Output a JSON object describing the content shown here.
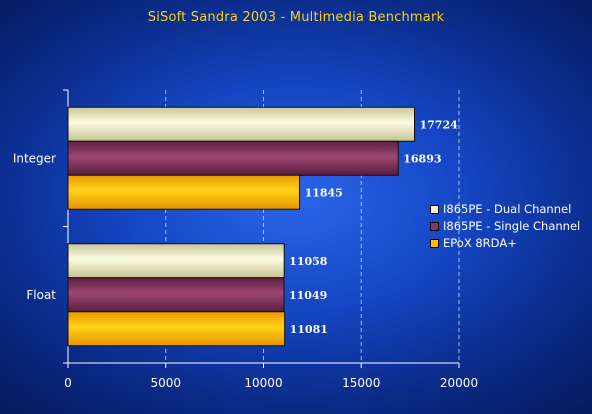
{
  "chart_data": {
    "type": "bar",
    "orientation": "horizontal",
    "title": "SiSoft Sandra 2003 - Multimedia Benchmark",
    "categories": [
      "Integer",
      "Float"
    ],
    "series": [
      {
        "name": "I865PE - Dual Channel",
        "values": [
          17724,
          11058
        ],
        "color": "#f4f2c8"
      },
      {
        "name": "I865PE - Single Channel",
        "values": [
          16893,
          11049
        ],
        "color": "#8a3560"
      },
      {
        "name": "EPoX 8RDA+",
        "values": [
          11845,
          11081
        ],
        "color": "#ffc000"
      }
    ],
    "xlim": [
      0,
      20000
    ],
    "xticks": [
      0,
      5000,
      10000,
      15000,
      20000
    ],
    "grid": true,
    "legend": "right"
  }
}
